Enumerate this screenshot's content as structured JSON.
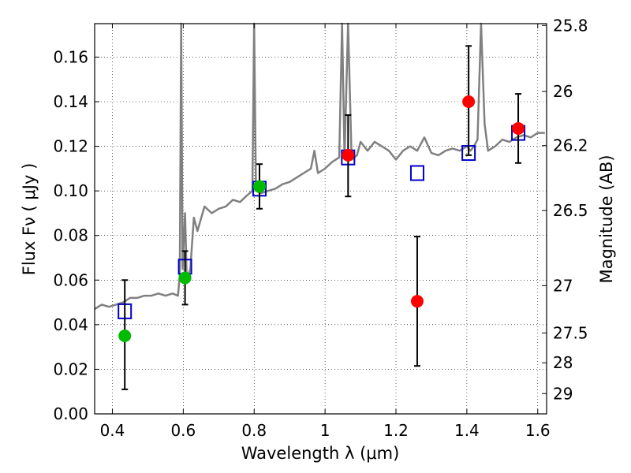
{
  "chart_data": {
    "type": "scatter",
    "title": "",
    "xlabel": "Wavelength  λ (μm)",
    "ylabel": "Flux  Fν  ( μJy )",
    "ylabel_right": "Magnitude (AB)",
    "xlim": [
      0.35,
      1.625
    ],
    "ylim": [
      0.0,
      0.175
    ],
    "grid": "dotted",
    "x_ticks": [
      0.4,
      0.6,
      0.8,
      1.0,
      1.2,
      1.4,
      1.6
    ],
    "x_tick_labels": [
      "0.4",
      "0.6",
      "0.8",
      "1",
      "1.2",
      "1.4",
      "1.6"
    ],
    "y_ticks": [
      0.0,
      0.02,
      0.04,
      0.06,
      0.08,
      0.1,
      0.12,
      0.14,
      0.16
    ],
    "y_tick_labels": [
      "0.00",
      "0.02",
      "0.04",
      "0.06",
      "0.08",
      "0.10",
      "0.12",
      "0.14",
      "0.16"
    ],
    "right_ticks": [
      {
        "label": "25.8",
        "flux": 0.1742
      },
      {
        "label": "26",
        "flux": 0.1446
      },
      {
        "label": "26.2",
        "flux": 0.1203
      },
      {
        "label": "26.5",
        "flux": 0.0912
      },
      {
        "label": "27",
        "flux": 0.0575
      },
      {
        "label": "27.5",
        "flux": 0.0363
      },
      {
        "label": "28",
        "flux": 0.0229
      },
      {
        "label": "29",
        "flux": 0.0091
      }
    ],
    "colors": {
      "spectrum": "#808080",
      "model": "#0000cc",
      "green": "#00bb00",
      "red": "#ff0000",
      "errorbar": "#000000"
    },
    "series": [
      {
        "kind": "line",
        "points": [
          [
            0.35,
            0.047
          ],
          [
            0.37,
            0.049
          ],
          [
            0.39,
            0.048
          ],
          [
            0.41,
            0.049
          ],
          [
            0.43,
            0.05
          ],
          [
            0.45,
            0.052
          ],
          [
            0.47,
            0.052
          ],
          [
            0.49,
            0.053
          ],
          [
            0.51,
            0.053
          ],
          [
            0.53,
            0.054
          ],
          [
            0.55,
            0.053
          ],
          [
            0.57,
            0.054
          ],
          [
            0.585,
            0.053
          ],
          [
            0.59,
            0.062
          ],
          [
            0.594,
            0.175
          ],
          [
            0.598,
            0.065
          ],
          [
            0.605,
            0.09
          ],
          [
            0.61,
            0.06
          ],
          [
            0.62,
            0.065
          ],
          [
            0.63,
            0.088
          ],
          [
            0.64,
            0.082
          ],
          [
            0.66,
            0.093
          ],
          [
            0.68,
            0.09
          ],
          [
            0.7,
            0.092
          ],
          [
            0.72,
            0.093
          ],
          [
            0.74,
            0.096
          ],
          [
            0.76,
            0.095
          ],
          [
            0.78,
            0.098
          ],
          [
            0.795,
            0.1
          ],
          [
            0.8,
            0.175
          ],
          [
            0.805,
            0.1
          ],
          [
            0.82,
            0.099
          ],
          [
            0.84,
            0.1
          ],
          [
            0.86,
            0.101
          ],
          [
            0.88,
            0.103
          ],
          [
            0.9,
            0.104
          ],
          [
            0.92,
            0.106
          ],
          [
            0.94,
            0.108
          ],
          [
            0.96,
            0.11
          ],
          [
            0.97,
            0.118
          ],
          [
            0.98,
            0.108
          ],
          [
            1.0,
            0.11
          ],
          [
            1.02,
            0.113
          ],
          [
            1.04,
            0.115
          ],
          [
            1.048,
            0.175
          ],
          [
            1.055,
            0.115
          ],
          [
            1.065,
            0.175
          ],
          [
            1.075,
            0.114
          ],
          [
            1.09,
            0.116
          ],
          [
            1.1,
            0.122
          ],
          [
            1.12,
            0.118
          ],
          [
            1.14,
            0.122
          ],
          [
            1.16,
            0.12
          ],
          [
            1.18,
            0.118
          ],
          [
            1.2,
            0.114
          ],
          [
            1.22,
            0.118
          ],
          [
            1.24,
            0.12
          ],
          [
            1.26,
            0.118
          ],
          [
            1.28,
            0.124
          ],
          [
            1.3,
            0.117
          ],
          [
            1.32,
            0.116
          ],
          [
            1.34,
            0.118
          ],
          [
            1.36,
            0.119
          ],
          [
            1.38,
            0.118
          ],
          [
            1.4,
            0.12
          ],
          [
            1.41,
            0.118
          ],
          [
            1.42,
            0.12
          ],
          [
            1.43,
            0.123
          ],
          [
            1.44,
            0.175
          ],
          [
            1.45,
            0.13
          ],
          [
            1.46,
            0.118
          ],
          [
            1.48,
            0.12
          ],
          [
            1.5,
            0.123
          ],
          [
            1.52,
            0.122
          ],
          [
            1.54,
            0.124
          ],
          [
            1.56,
            0.125
          ],
          [
            1.58,
            0.124
          ],
          [
            1.6,
            0.126
          ],
          [
            1.62,
            0.126
          ]
        ]
      },
      {
        "kind": "squares",
        "points": [
          [
            0.435,
            0.046
          ],
          [
            0.605,
            0.066
          ],
          [
            0.815,
            0.101
          ],
          [
            1.065,
            0.115
          ],
          [
            1.26,
            0.108
          ],
          [
            1.405,
            0.117
          ],
          [
            1.545,
            0.126
          ]
        ]
      },
      {
        "kind": "circles",
        "color": "green",
        "points": [
          [
            0.435,
            0.035
          ],
          [
            0.605,
            0.061
          ],
          [
            0.815,
            0.102
          ]
        ],
        "errors": [
          [
            0.011,
            0.06
          ],
          [
            0.049,
            0.073
          ],
          [
            0.092,
            0.112
          ]
        ]
      },
      {
        "kind": "circles",
        "color": "red",
        "points": [
          [
            1.065,
            0.116
          ],
          [
            1.26,
            0.0505
          ],
          [
            1.405,
            0.14
          ],
          [
            1.545,
            0.128
          ]
        ],
        "errors": [
          [
            0.0975,
            0.134
          ],
          [
            0.0215,
            0.0795
          ],
          [
            0.116,
            0.165
          ],
          [
            0.1125,
            0.1435
          ]
        ]
      }
    ]
  }
}
